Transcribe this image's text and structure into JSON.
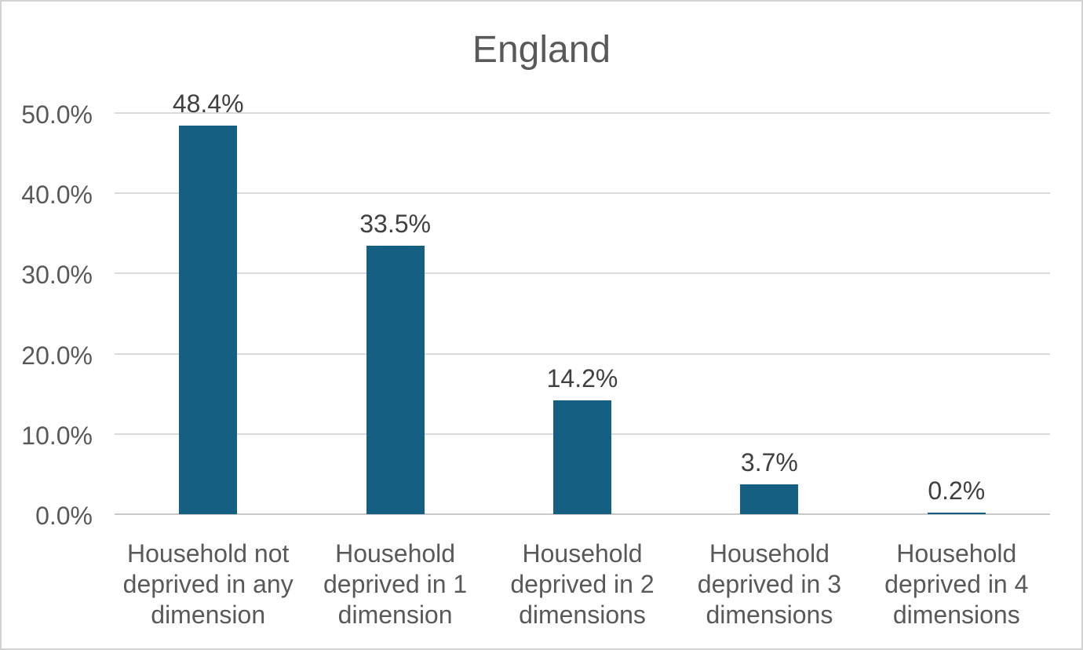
{
  "chart_data": {
    "type": "bar",
    "title": "England",
    "categories": [
      "Household not deprived in any dimension",
      "Household deprived in 1 dimension",
      "Household deprived in 2 dimensions",
      "Household deprived in 3 dimensions",
      "Household deprived in 4 dimensions"
    ],
    "values": [
      48.4,
      33.5,
      14.2,
      3.7,
      0.2
    ],
    "data_labels": [
      "48.4%",
      "33.5%",
      "14.2%",
      "3.7%",
      "0.2%"
    ],
    "yticks": [
      {
        "value": 0,
        "label": "0.0%"
      },
      {
        "value": 10,
        "label": "10.0%"
      },
      {
        "value": 20,
        "label": "20.0%"
      },
      {
        "value": 30,
        "label": "30.0%"
      },
      {
        "value": 40,
        "label": "40.0%"
      },
      {
        "value": 50,
        "label": "50.0%"
      }
    ],
    "ylim": [
      0,
      50
    ],
    "xlabel": "",
    "ylabel": "",
    "grid": "horizontal",
    "legend": "none",
    "colors": {
      "bar_fill": "#156082",
      "title_text": "#595959",
      "axis_text": "#595959",
      "data_label_text": "#404040",
      "gridline": "#dadada",
      "axis_line": "#c9c9c9",
      "frame_border": "#d2d2d2",
      "background": "#ffffff"
    }
  }
}
